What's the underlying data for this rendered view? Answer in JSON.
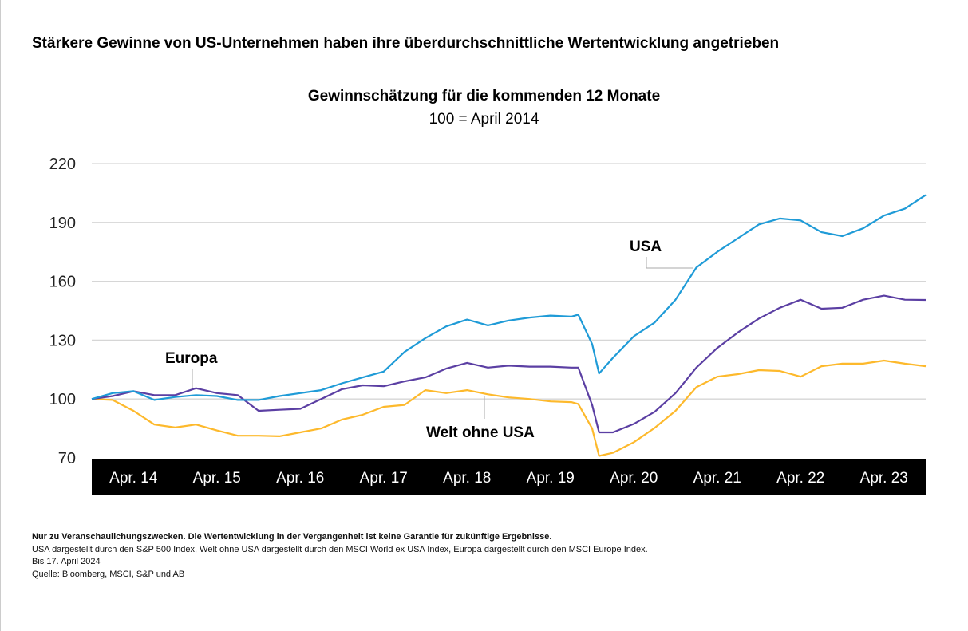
{
  "title": "Stärkere Gewinne von US-Unternehmen haben ihre überdurchschnittliche Wertentwicklung angetrieben",
  "footnotes": {
    "disclaimer": "Nur zu Veranschaulichungszwecken. Die Wertentwicklung in der Vergangenheit ist keine Garantie für zukünftige Ergebnisse.",
    "indices": "USA dargestellt durch den S&P 500 Index, Welt ohne USA dargestellt durch den MSCI World ex USA Index, Europa dargestellt durch den MSCI Europe Index.",
    "date": "Bis 17. April 2024",
    "source": "Quelle: Bloomberg, MSCI, S&P und AB"
  },
  "chart_data": {
    "type": "line",
    "title": "Gewinnschätzung für die kommenden 12 Monate",
    "subtitle": "100 = April 2014",
    "xlabel": "",
    "ylabel": "",
    "ylim": [
      70,
      220
    ],
    "yticks": [
      70,
      100,
      130,
      160,
      190,
      220
    ],
    "xlim": [
      "2014-04",
      "2024-04"
    ],
    "xtick_labels": [
      "Apr. 14",
      "Apr. 15",
      "Apr. 16",
      "Apr. 17",
      "Apr. 18",
      "Apr. 19",
      "Apr. 20",
      "Apr. 21",
      "Apr. 22",
      "Apr. 23"
    ],
    "grid": "horizontal",
    "x": [
      "2014-04",
      "2014-07",
      "2014-10",
      "2015-01",
      "2015-04",
      "2015-07",
      "2015-10",
      "2016-01",
      "2016-04",
      "2016-07",
      "2016-10",
      "2017-01",
      "2017-04",
      "2017-07",
      "2017-10",
      "2018-01",
      "2018-04",
      "2018-07",
      "2018-10",
      "2019-01",
      "2019-04",
      "2019-07",
      "2019-10",
      "2020-01",
      "2020-02",
      "2020-04",
      "2020-05",
      "2020-07",
      "2020-10",
      "2021-01",
      "2021-04",
      "2021-07",
      "2021-10",
      "2022-01",
      "2022-04",
      "2022-07",
      "2022-10",
      "2023-01",
      "2023-04",
      "2023-07",
      "2023-10",
      "2024-01",
      "2024-04"
    ],
    "series": [
      {
        "name": "USA",
        "color": "#1f9bd7",
        "values": [
          100,
          103,
          104,
          99.5,
          101,
          102,
          101.5,
          99.5,
          99.5,
          101.5,
          103,
          104.5,
          108,
          111,
          114,
          124,
          131,
          137,
          140.5,
          137.5,
          140,
          141.5,
          142.5,
          142,
          143,
          128,
          113,
          121,
          132,
          139,
          150.6,
          167,
          175,
          182,
          189,
          192,
          191,
          185,
          183,
          187,
          193.5,
          197,
          204
        ]
      },
      {
        "name": "Europa",
        "color": "#5b3fa3",
        "values": [
          100,
          101.5,
          104,
          102,
          102,
          105.5,
          103,
          102,
          94,
          94.5,
          95,
          100,
          105,
          107,
          106.5,
          109,
          111,
          115.5,
          118.4,
          116,
          117,
          116.5,
          116.5,
          116,
          116,
          97,
          83,
          83,
          87.3,
          93.5,
          103,
          116,
          126,
          134,
          141,
          146.5,
          150.6,
          146,
          146.5,
          150.6,
          152.7,
          150.6,
          150.5
        ]
      },
      {
        "name": "Welt ohne USA",
        "color": "#fdb92c",
        "values": [
          100,
          99.5,
          94,
          87,
          85.5,
          87,
          84,
          81.3,
          81.3,
          81,
          83,
          85,
          89.5,
          92,
          96,
          97,
          104.5,
          103,
          104.5,
          102.4,
          100.8,
          100,
          98.8,
          98.4,
          97.5,
          85,
          71,
          72.6,
          78,
          85.3,
          94,
          106,
          111.4,
          112.7,
          114.7,
          114.3,
          111.4,
          116.7,
          118,
          118,
          119.6,
          118,
          116.7
        ]
      }
    ]
  }
}
